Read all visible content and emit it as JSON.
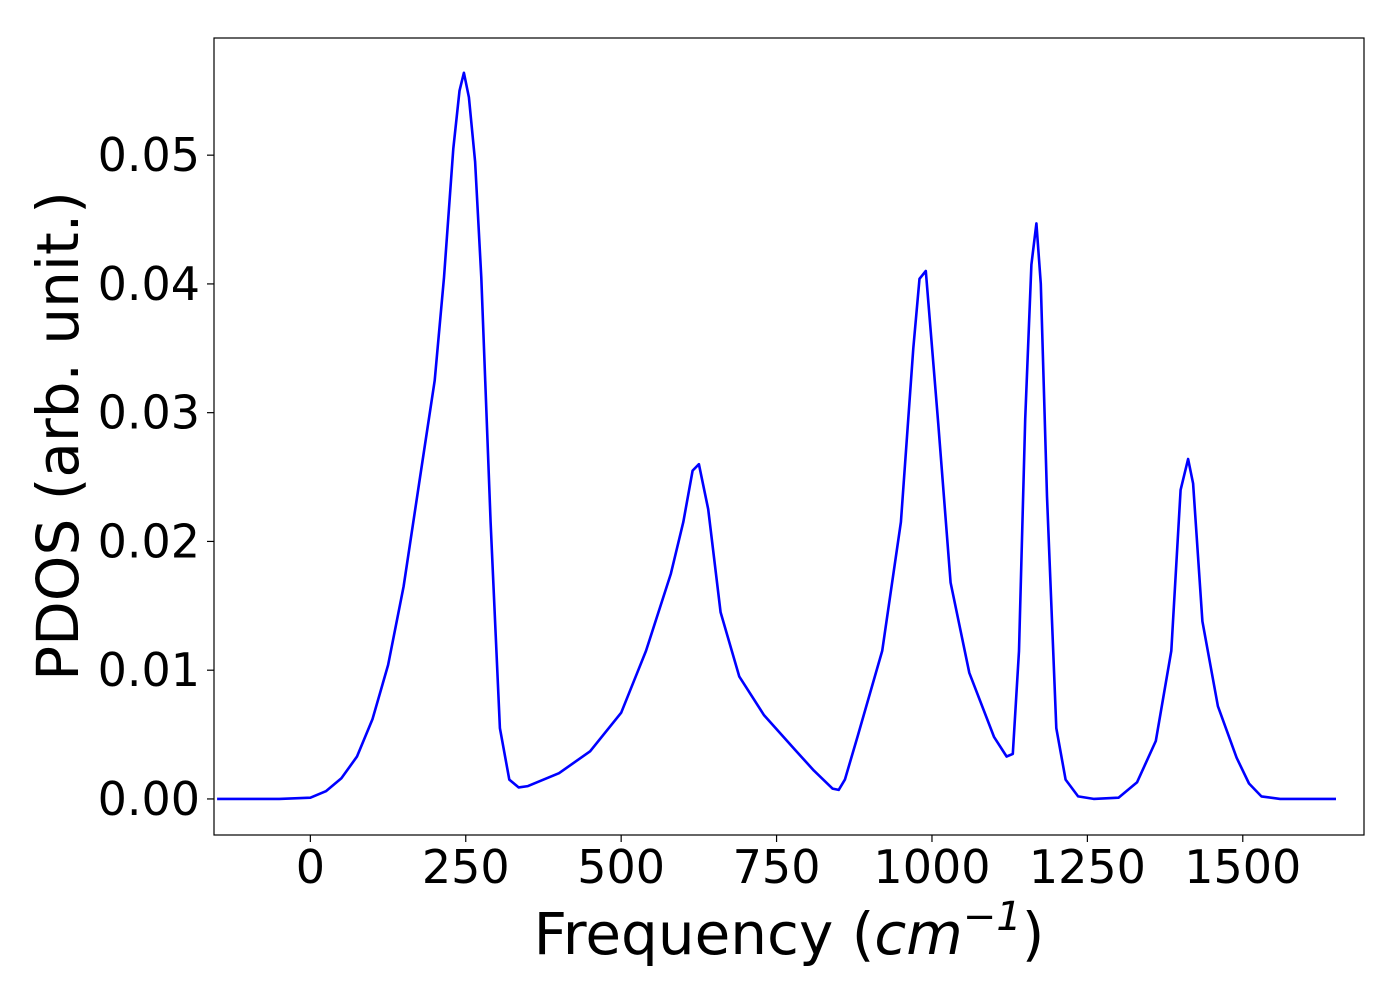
{
  "chart_data": {
    "type": "line",
    "title": "",
    "xlabel": {
      "prefix": "Frequency (",
      "unit_base": "cm",
      "unit_exp": "−1",
      "suffix": ")"
    },
    "ylabel": "PDOS (arb. unit.)",
    "xlim": [
      -155,
      1695
    ],
    "ylim": [
      -0.0028,
      0.0591
    ],
    "xticks": [
      0,
      250,
      500,
      750,
      1000,
      1250,
      1500
    ],
    "xtick_labels": [
      "0",
      "250",
      "500",
      "750",
      "1000",
      "1250",
      "1500"
    ],
    "yticks": [
      0.0,
      0.01,
      0.02,
      0.03,
      0.04,
      0.05
    ],
    "ytick_labels": [
      "0.00",
      "0.01",
      "0.02",
      "0.03",
      "0.04",
      "0.05"
    ],
    "grid": false,
    "series": [
      {
        "color": "#0000ff",
        "x": [
          -150,
          -100,
          -50,
          0,
          25,
          50,
          75,
          100,
          125,
          150,
          175,
          200,
          215,
          230,
          240,
          247,
          255,
          265,
          275,
          290,
          305,
          320,
          335,
          350,
          400,
          450,
          500,
          540,
          580,
          600,
          615,
          625,
          640,
          660,
          690,
          730,
          780,
          810,
          840,
          850,
          860,
          880,
          920,
          950,
          970,
          980,
          990,
          1010,
          1030,
          1060,
          1100,
          1120,
          1130,
          1140,
          1150,
          1160,
          1168,
          1175,
          1185,
          1200,
          1215,
          1235,
          1260,
          1300,
          1330,
          1360,
          1385,
          1400,
          1412,
          1420,
          1435,
          1460,
          1490,
          1510,
          1530,
          1560,
          1600,
          1650
        ],
        "y": [
          0,
          0,
          0,
          0.0001,
          0.0006,
          0.0016,
          0.0033,
          0.0062,
          0.0104,
          0.0165,
          0.0245,
          0.0325,
          0.0405,
          0.0505,
          0.055,
          0.0564,
          0.0545,
          0.0495,
          0.0405,
          0.0215,
          0.0055,
          0.0015,
          0.0009,
          0.001,
          0.002,
          0.0037,
          0.0067,
          0.0115,
          0.0175,
          0.0215,
          0.0255,
          0.026,
          0.0225,
          0.0145,
          0.0095,
          0.0065,
          0.0038,
          0.0022,
          0.0008,
          0.0007,
          0.0015,
          0.0048,
          0.0115,
          0.0215,
          0.035,
          0.0404,
          0.041,
          0.0292,
          0.0168,
          0.0098,
          0.0048,
          0.0033,
          0.0035,
          0.0115,
          0.0295,
          0.0415,
          0.0447,
          0.04,
          0.0235,
          0.0055,
          0.0015,
          0.0002,
          0,
          0.0001,
          0.0013,
          0.0045,
          0.0115,
          0.024,
          0.0264,
          0.0245,
          0.0138,
          0.0072,
          0.0032,
          0.0012,
          0.0002,
          0,
          0,
          0
        ]
      }
    ]
  }
}
